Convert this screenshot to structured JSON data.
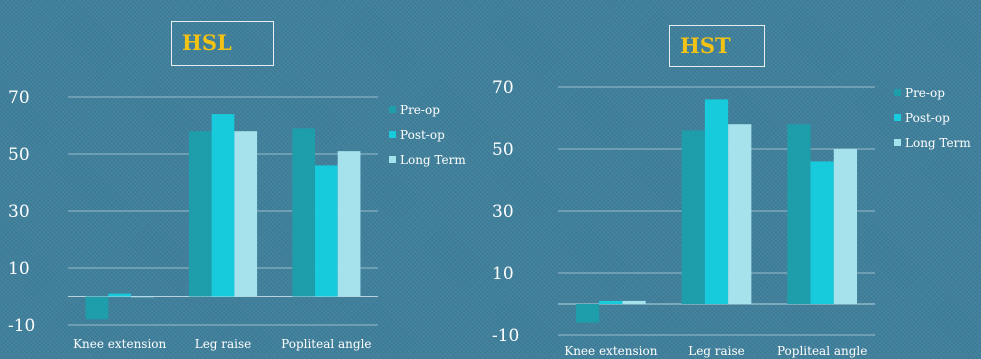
{
  "chart_data": [
    {
      "type": "bar",
      "title": "HSL",
      "categories": [
        "Knee extension",
        "Leg raise",
        "Popliteal angle"
      ],
      "series": [
        {
          "name": "Pre-op",
          "values": [
            -8,
            58,
            59
          ]
        },
        {
          "name": "Post-op",
          "values": [
            1,
            64,
            46
          ]
        },
        {
          "name": "Long Term",
          "values": [
            0,
            58,
            51
          ]
        }
      ],
      "ylim": [
        -10,
        70
      ],
      "yticks": [
        -10,
        10,
        30,
        50,
        70
      ],
      "legend_position": "right",
      "grid": true,
      "colors": [
        "#1e9eab",
        "#17cbdd",
        "#a6e2ec"
      ]
    },
    {
      "type": "bar",
      "title": "HST",
      "categories": [
        "Knee extension",
        "Leg raise",
        "Popliteal angle"
      ],
      "series": [
        {
          "name": "Pre-op",
          "values": [
            -6,
            56,
            58
          ]
        },
        {
          "name": "Post-op",
          "values": [
            1,
            66,
            46
          ]
        },
        {
          "name": "Long Term",
          "values": [
            1,
            58,
            50
          ]
        }
      ],
      "ylim": [
        -10,
        70
      ],
      "yticks": [
        -10,
        10,
        30,
        50,
        70
      ],
      "legend_position": "right",
      "grid": true,
      "colors": [
        "#1e9eab",
        "#17cbdd",
        "#a6e2ec"
      ]
    }
  ]
}
